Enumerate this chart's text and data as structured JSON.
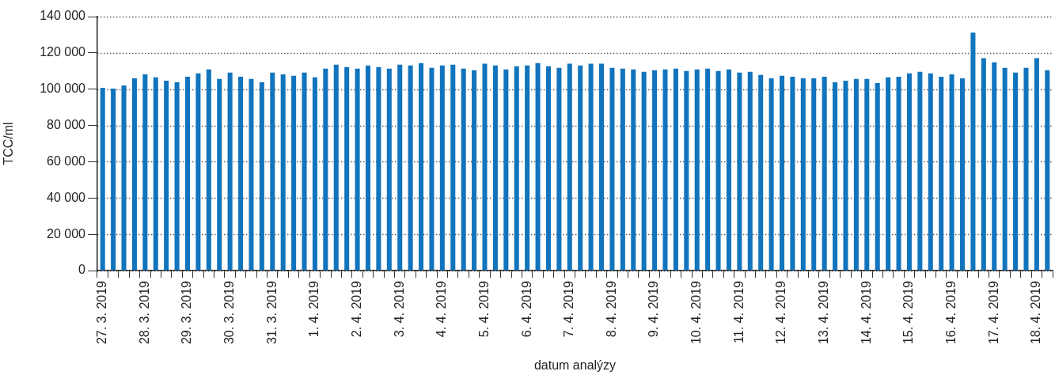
{
  "chart_data": {
    "type": "bar",
    "xlabel": "datum analýzy",
    "ylabel": "TCC/ml",
    "categories": [
      "27. 3. 2019",
      null,
      null,
      null,
      "28. 3. 2019",
      null,
      null,
      null,
      "29. 3. 2019",
      null,
      null,
      null,
      "30. 3. 2019",
      null,
      null,
      null,
      "31. 3. 2019",
      null,
      null,
      null,
      "1. 4. 2019",
      null,
      null,
      null,
      "2. 4. 2019",
      null,
      null,
      null,
      "3. 4. 2019",
      null,
      null,
      null,
      "4. 4. 2019",
      null,
      null,
      null,
      "5. 4. 2019",
      null,
      null,
      null,
      "6. 4. 2019",
      null,
      null,
      null,
      "7. 4. 2019",
      null,
      null,
      null,
      "8. 4. 2019",
      null,
      null,
      null,
      "9. 4. 2019",
      null,
      null,
      null,
      "10. 4. 2019",
      null,
      null,
      null,
      "11. 4. 2019",
      null,
      null,
      null,
      "12. 4. 2019",
      null,
      null,
      null,
      "13. 4. 2019",
      null,
      null,
      null,
      "14. 4. 2019",
      null,
      null,
      null,
      "15. 4. 2019",
      null,
      null,
      null,
      "16. 4. 2019",
      null,
      null,
      null,
      "17. 4. 2019",
      null,
      null,
      null,
      "18. 4. 2019",
      null
    ],
    "values": [
      100700,
      100300,
      102100,
      106000,
      108200,
      106500,
      104700,
      103800,
      106900,
      108700,
      110900,
      105600,
      109100,
      106900,
      105600,
      103800,
      109100,
      108200,
      107400,
      109100,
      106500,
      111300,
      113500,
      112200,
      111300,
      113100,
      112200,
      111300,
      113500,
      113100,
      114400,
      111800,
      113100,
      113500,
      111300,
      110400,
      114000,
      113100,
      110900,
      112600,
      113100,
      114400,
      112600,
      111800,
      114000,
      113100,
      114000,
      114000,
      111800,
      111300,
      110900,
      109600,
      110400,
      110900,
      111300,
      110000,
      110900,
      111300,
      110000,
      110900,
      109100,
      109600,
      107800,
      106000,
      107400,
      106900,
      106000,
      106000,
      106900,
      103800,
      104700,
      105600,
      105600,
      103400,
      106500,
      106900,
      108700,
      109600,
      108700,
      106900,
      108200,
      106000,
      131200,
      117100,
      114800,
      111800,
      109100,
      111800,
      117100,
      110400
    ],
    "color": "#1174bd",
    "ylim": [
      0,
      140000
    ],
    "yticks": [
      {
        "value": 0,
        "label": "0"
      },
      {
        "value": 20000,
        "label": "20 000"
      },
      {
        "value": 40000,
        "label": "40 000"
      },
      {
        "value": 60000,
        "label": "60 000"
      },
      {
        "value": 80000,
        "label": "80 000"
      },
      {
        "value": 100000,
        "label": "100 000"
      },
      {
        "value": 120000,
        "label": "120 000"
      },
      {
        "value": 140000,
        "label": "140 000"
      }
    ],
    "grid": "y"
  }
}
